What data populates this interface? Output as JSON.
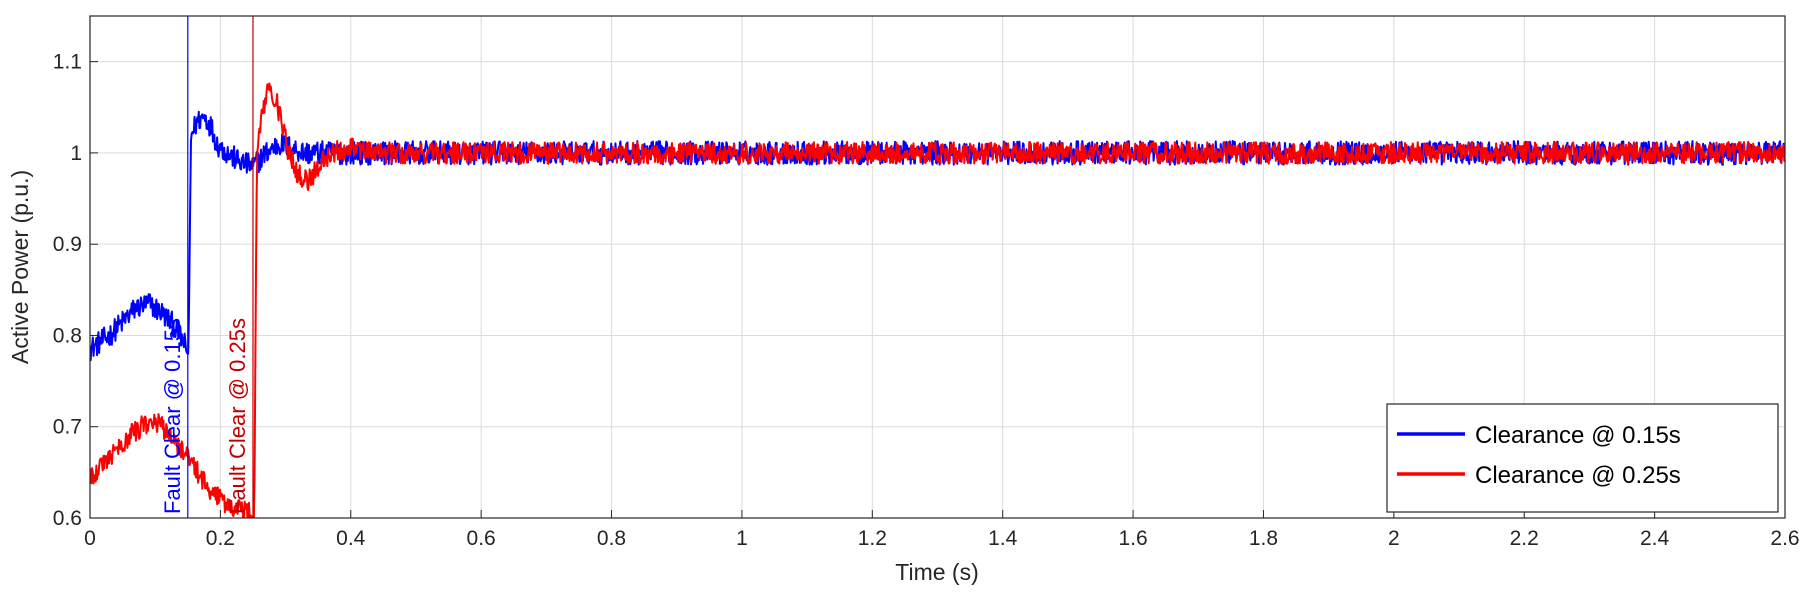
{
  "chart_data": {
    "type": "line",
    "title": "",
    "xlabel": "Time (s)",
    "ylabel": "Active Power (p.u.)",
    "xlim": [
      0,
      2.6
    ],
    "ylim": [
      0.6,
      1.15
    ],
    "xticks": [
      0,
      0.2,
      0.4,
      0.6,
      0.8,
      1,
      1.2,
      1.4,
      1.6,
      1.8,
      2,
      2.2,
      2.4,
      2.6
    ],
    "xtick_labels": [
      "0",
      "0.2",
      "0.4",
      "0.6",
      "0.8",
      "1",
      "1.2",
      "1.4",
      "1.6",
      "1.8",
      "2",
      "2.2",
      "2.4",
      "2.6"
    ],
    "yticks": [
      0.6,
      0.7,
      0.8,
      0.9,
      1.0,
      1.1
    ],
    "ytick_labels": [
      "0.6",
      "0.7",
      "0.8",
      "0.9",
      "1",
      "1.1"
    ],
    "grid": true,
    "legend_position": "bottom-right",
    "series": [
      {
        "name": "Clearance @ 0.15s",
        "color": "#0000ff",
        "fault_clear_time": 0.15,
        "noise_amplitude": 0.013,
        "x": [
          0,
          0.01,
          0.03,
          0.05,
          0.07,
          0.09,
          0.11,
          0.13,
          0.145,
          0.149,
          0.151,
          0.155,
          0.165,
          0.175,
          0.185,
          0.195,
          0.21,
          0.23,
          0.25,
          0.27,
          0.29,
          0.31,
          0.33,
          0.36,
          0.4,
          0.5,
          0.7,
          1.0,
          1.5,
          2.0,
          2.6
        ],
        "y": [
          0.785,
          0.79,
          0.8,
          0.815,
          0.83,
          0.835,
          0.825,
          0.81,
          0.79,
          0.78,
          0.78,
          1.02,
          1.035,
          1.04,
          1.03,
          1.01,
          1.0,
          0.99,
          0.985,
          1.0,
          1.01,
          1.005,
          1.0,
          1.0,
          1.0,
          1.0,
          1.0,
          1.0,
          1.0,
          1.0,
          1.0
        ]
      },
      {
        "name": "Clearance @ 0.25s",
        "color": "#ff0000",
        "fault_clear_time": 0.25,
        "noise_amplitude": 0.012,
        "x": [
          0,
          0.02,
          0.04,
          0.06,
          0.08,
          0.1,
          0.12,
          0.14,
          0.16,
          0.18,
          0.2,
          0.22,
          0.245,
          0.249,
          0.252,
          0.256,
          0.265,
          0.275,
          0.285,
          0.295,
          0.305,
          0.32,
          0.335,
          0.35,
          0.37,
          0.4,
          0.45,
          0.5,
          0.7,
          1.0,
          1.5,
          2.0,
          2.6
        ],
        "y": [
          0.645,
          0.66,
          0.675,
          0.69,
          0.7,
          0.705,
          0.695,
          0.675,
          0.655,
          0.635,
          0.62,
          0.61,
          0.605,
          0.6,
          0.6,
          1.0,
          1.05,
          1.07,
          1.06,
          1.03,
          1.0,
          0.975,
          0.97,
          0.985,
          1.0,
          1.005,
          1.0,
          1.0,
          1.0,
          1.0,
          1.0,
          1.0,
          1.0
        ]
      }
    ],
    "annotations": [
      {
        "text": "Fault Clear @ 0.15s",
        "x": 0.15,
        "color": "#0000ff"
      },
      {
        "text": "Fault Clear @ 0.25s",
        "x": 0.25,
        "color": "#c00000"
      }
    ]
  }
}
